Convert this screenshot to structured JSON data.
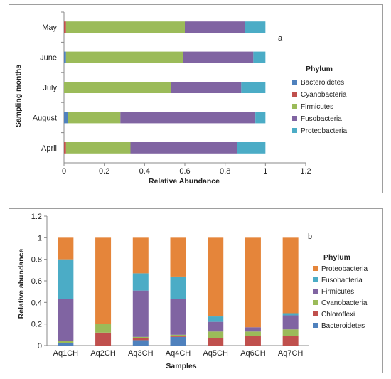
{
  "chart_data": [
    {
      "type": "bar",
      "orientation": "horizontal",
      "stacked": true,
      "panel_label": "a",
      "categories": [
        "May",
        "June",
        "July",
        "August",
        "April"
      ],
      "series": [
        {
          "name": "Bacteroidetes",
          "color": "#4f81bd",
          "values": [
            0.0,
            0.01,
            0.0,
            0.02,
            0.0
          ]
        },
        {
          "name": "Cyanobacteria",
          "color": "#c0504d",
          "values": [
            0.01,
            0.0,
            0.0,
            0.0,
            0.01
          ]
        },
        {
          "name": "Firmicutes",
          "color": "#9bbb59",
          "values": [
            0.59,
            0.58,
            0.53,
            0.26,
            0.32
          ]
        },
        {
          "name": "Fusobacteria",
          "color": "#8064a2",
          "values": [
            0.3,
            0.35,
            0.35,
            0.67,
            0.53
          ]
        },
        {
          "name": "Proteobacteria",
          "color": "#4bacc6",
          "values": [
            0.1,
            0.06,
            0.12,
            0.05,
            0.14
          ]
        }
      ],
      "xlabel": "Relative Abundance",
      "ylabel": "Sampling months",
      "xlim": [
        0,
        1.2
      ],
      "xticks": [
        "0",
        "0.2",
        "0.4",
        "0.6",
        "0.8",
        "1",
        "1.2"
      ],
      "legend_title": "Phylum",
      "legend_position": "right",
      "grid": false
    },
    {
      "type": "bar",
      "orientation": "vertical",
      "stacked": true,
      "panel_label": "b",
      "categories": [
        "Aq1CH",
        "Aq2CH",
        "Aq3CH",
        "Aq4CH",
        "Aq5CH",
        "Aq6CH",
        "Aq7CH"
      ],
      "series": [
        {
          "name": "Bacteroidetes",
          "color": "#4f81bd",
          "values": [
            0.02,
            0.0,
            0.05,
            0.08,
            0.0,
            0.0,
            0.0
          ]
        },
        {
          "name": "Chloroflexi",
          "color": "#c0504d",
          "values": [
            0.0,
            0.12,
            0.02,
            0.01,
            0.07,
            0.09,
            0.09
          ]
        },
        {
          "name": "Cyanobacteria",
          "color": "#9bbb59",
          "values": [
            0.02,
            0.08,
            0.01,
            0.01,
            0.06,
            0.04,
            0.06
          ]
        },
        {
          "name": "Firmicutes",
          "color": "#8064a2",
          "values": [
            0.39,
            0.0,
            0.43,
            0.33,
            0.09,
            0.04,
            0.13
          ]
        },
        {
          "name": "Fusobacteria",
          "color": "#4bacc6",
          "values": [
            0.37,
            0.0,
            0.16,
            0.21,
            0.05,
            0.0,
            0.02
          ]
        },
        {
          "name": "Proteobacteria",
          "color": "#e5853a",
          "values": [
            0.2,
            0.8,
            0.33,
            0.36,
            0.73,
            0.83,
            0.7
          ]
        }
      ],
      "xlabel": "Samples",
      "ylabel": "Relative abundance",
      "ylim": [
        0,
        1.2
      ],
      "yticks": [
        "0",
        "0.2",
        "0.4",
        "0.6",
        "0.8",
        "1",
        "1.2"
      ],
      "legend_title": "Phylum",
      "legend_order": [
        "Proteobacteria",
        "Fusobacteria",
        "Firmicutes",
        "Cyanobacteria",
        "Chloroflexi",
        "Bacteroidetes"
      ],
      "legend_position": "right",
      "grid": false
    }
  ]
}
